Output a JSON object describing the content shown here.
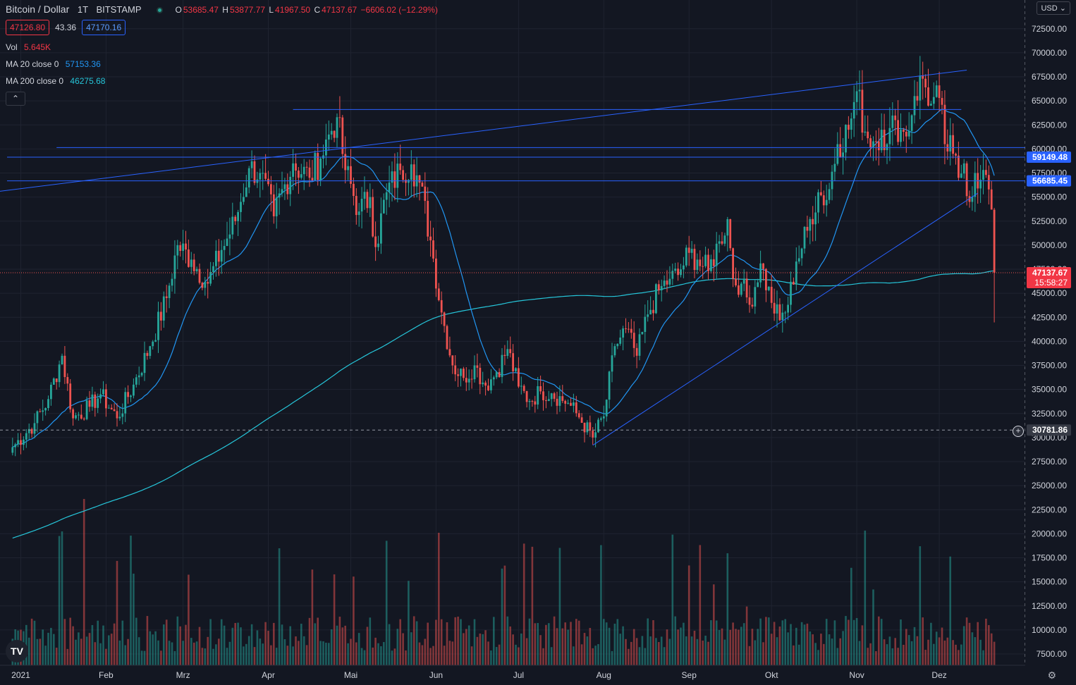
{
  "header": {
    "title": "Bitcoin / Dollar",
    "interval": "1T",
    "exchange": "BITSTAMP",
    "open_label": "O",
    "open": "53685.47",
    "high_label": "H",
    "high": "53877.77",
    "low_label": "L",
    "low": "41967.50",
    "close_label": "C",
    "close": "47137.67",
    "change": "−6606.02 (−12.29%)",
    "bid": "47126.80",
    "spread": "43.36",
    "ask": "47170.16",
    "collapse_glyph": "⌃"
  },
  "indicators": {
    "vol": {
      "label": "Vol",
      "value": "5.645K"
    },
    "ma20": {
      "label": "MA 20 close 0",
      "value": "57153.36"
    },
    "ma200": {
      "label": "MA 200 close 0",
      "value": "46275.68"
    }
  },
  "toolbar": {
    "currency": "USD",
    "settings_icon": "gear-icon",
    "logo": "tradingview-logo"
  },
  "colors": {
    "background": "#131722",
    "grid": "#1f2330",
    "up": "#26a69a",
    "down": "#ef5350",
    "ma20": "#2196f3",
    "ma200": "#26c6da",
    "drawing": "#2962ff",
    "axis_text": "#d1d4dc"
  },
  "chart_data": {
    "type": "candlestick",
    "y_axis": {
      "min": 6250,
      "max": 74000,
      "ticks": [
        "72500.00",
        "70000.00",
        "67500.00",
        "65000.00",
        "62500.00",
        "60000.00",
        "57500.00",
        "55000.00",
        "52500.00",
        "50000.00",
        "47500.00",
        "45000.00",
        "42500.00",
        "40000.00",
        "37500.00",
        "35000.00",
        "32500.00",
        "30000.00",
        "27500.00",
        "25000.00",
        "22500.00",
        "20000.00",
        "17500.00",
        "15000.00",
        "12500.00",
        "10000.00",
        "7500.00"
      ]
    },
    "x_axis": {
      "labels": [
        {
          "label": "2021",
          "day": 5
        },
        {
          "label": "Feb",
          "day": 36
        },
        {
          "label": "Mrz",
          "day": 64
        },
        {
          "label": "Apr",
          "day": 95
        },
        {
          "label": "Mai",
          "day": 125
        },
        {
          "label": "Jun",
          "day": 156
        },
        {
          "label": "Jul",
          "day": 186
        },
        {
          "label": "Aug",
          "day": 217
        },
        {
          "label": "Sep",
          "day": 248
        },
        {
          "label": "Okt",
          "day": 278
        },
        {
          "label": "Nov",
          "day": 309
        },
        {
          "label": "Dez",
          "day": 339
        }
      ]
    },
    "price_labels": [
      {
        "value": 59149.48,
        "text": "59149.48",
        "kind": "hline"
      },
      {
        "value": 56685.45,
        "text": "56685.45",
        "kind": "hline"
      },
      {
        "value": 47137.67,
        "text": "47137.67",
        "sub": "15:58:27",
        "kind": "last"
      },
      {
        "value": 30781.86,
        "text": "30781.86",
        "kind": "crosshair"
      }
    ],
    "horizontal_lines": [
      {
        "value": 64100,
        "from_day": 104,
        "to_day": 347
      },
      {
        "value": 60150,
        "from_day": 18,
        "to_day": 358
      },
      {
        "value": 59149.48,
        "from_day": 0,
        "to_day": 358
      },
      {
        "value": 56685.45,
        "from_day": 0,
        "to_day": 358
      }
    ],
    "trend_lines": [
      {
        "d1": 0,
        "v1": 55600,
        "d2": 349,
        "v2": 68200
      },
      {
        "d1": 213,
        "v1": 29200,
        "d2": 353,
        "v2": 55400
      }
    ],
    "anchors": [
      [
        2,
        29000
      ],
      [
        10,
        31500
      ],
      [
        15,
        34000
      ],
      [
        20,
        38500
      ],
      [
        24,
        32000
      ],
      [
        30,
        33200
      ],
      [
        34,
        34500
      ],
      [
        40,
        32000
      ],
      [
        46,
        35500
      ],
      [
        52,
        39500
      ],
      [
        58,
        44500
      ],
      [
        62,
        50000
      ],
      [
        67,
        48500
      ],
      [
        73,
        46000
      ],
      [
        78,
        49500
      ],
      [
        83,
        52500
      ],
      [
        88,
        58000
      ],
      [
        92,
        57500
      ],
      [
        97,
        53000
      ],
      [
        104,
        58500
      ],
      [
        110,
        57000
      ],
      [
        114,
        59000
      ],
      [
        117,
        61500
      ],
      [
        120,
        63300
      ],
      [
        123,
        57800
      ],
      [
        128,
        53500
      ],
      [
        132,
        55000
      ],
      [
        134,
        49800
      ],
      [
        138,
        55500
      ],
      [
        143,
        57800
      ],
      [
        147,
        58400
      ],
      [
        150,
        56500
      ],
      [
        154,
        50500
      ],
      [
        158,
        43000
      ],
      [
        162,
        37500
      ],
      [
        166,
        36200
      ],
      [
        170,
        37500
      ],
      [
        174,
        35400
      ],
      [
        178,
        36800
      ],
      [
        182,
        39200
      ],
      [
        186,
        35300
      ],
      [
        190,
        33800
      ],
      [
        194,
        34800
      ],
      [
        198,
        34600
      ],
      [
        204,
        33600
      ],
      [
        208,
        32100
      ],
      [
        213,
        30000
      ],
      [
        217,
        32200
      ],
      [
        221,
        39500
      ],
      [
        225,
        41300
      ],
      [
        229,
        38500
      ],
      [
        233,
        42800
      ],
      [
        237,
        45300
      ],
      [
        241,
        46500
      ],
      [
        244,
        46900
      ],
      [
        248,
        49200
      ],
      [
        251,
        48500
      ],
      [
        255,
        47300
      ],
      [
        259,
        50400
      ],
      [
        262,
        52700
      ],
      [
        264,
        46500
      ],
      [
        267,
        46000
      ],
      [
        270,
        43800
      ],
      [
        274,
        48100
      ],
      [
        278,
        44000
      ],
      [
        281,
        42200
      ],
      [
        284,
        43800
      ],
      [
        287,
        48300
      ],
      [
        291,
        51500
      ],
      [
        295,
        55500
      ],
      [
        298,
        54700
      ],
      [
        302,
        60500
      ],
      [
        306,
        62000
      ],
      [
        309,
        66000
      ],
      [
        312,
        61800
      ],
      [
        315,
        60800
      ],
      [
        318,
        62000
      ],
      [
        320,
        60500
      ],
      [
        323,
        63000
      ],
      [
        325,
        62000
      ],
      [
        327,
        61300
      ],
      [
        330,
        65500
      ],
      [
        333,
        67300
      ],
      [
        336,
        64700
      ],
      [
        339,
        65300
      ],
      [
        341,
        60500
      ],
      [
        344,
        59500
      ],
      [
        346,
        57000
      ],
      [
        348,
        58500
      ],
      [
        350,
        54500
      ],
      [
        352,
        57500
      ],
      [
        354,
        56800
      ],
      [
        356,
        57300
      ],
      [
        358,
        53700
      ],
      [
        359,
        47137.67
      ]
    ],
    "last_candle": {
      "open": 53685.47,
      "high": 53877.77,
      "low": 41967.5,
      "close": 47137.67
    }
  }
}
